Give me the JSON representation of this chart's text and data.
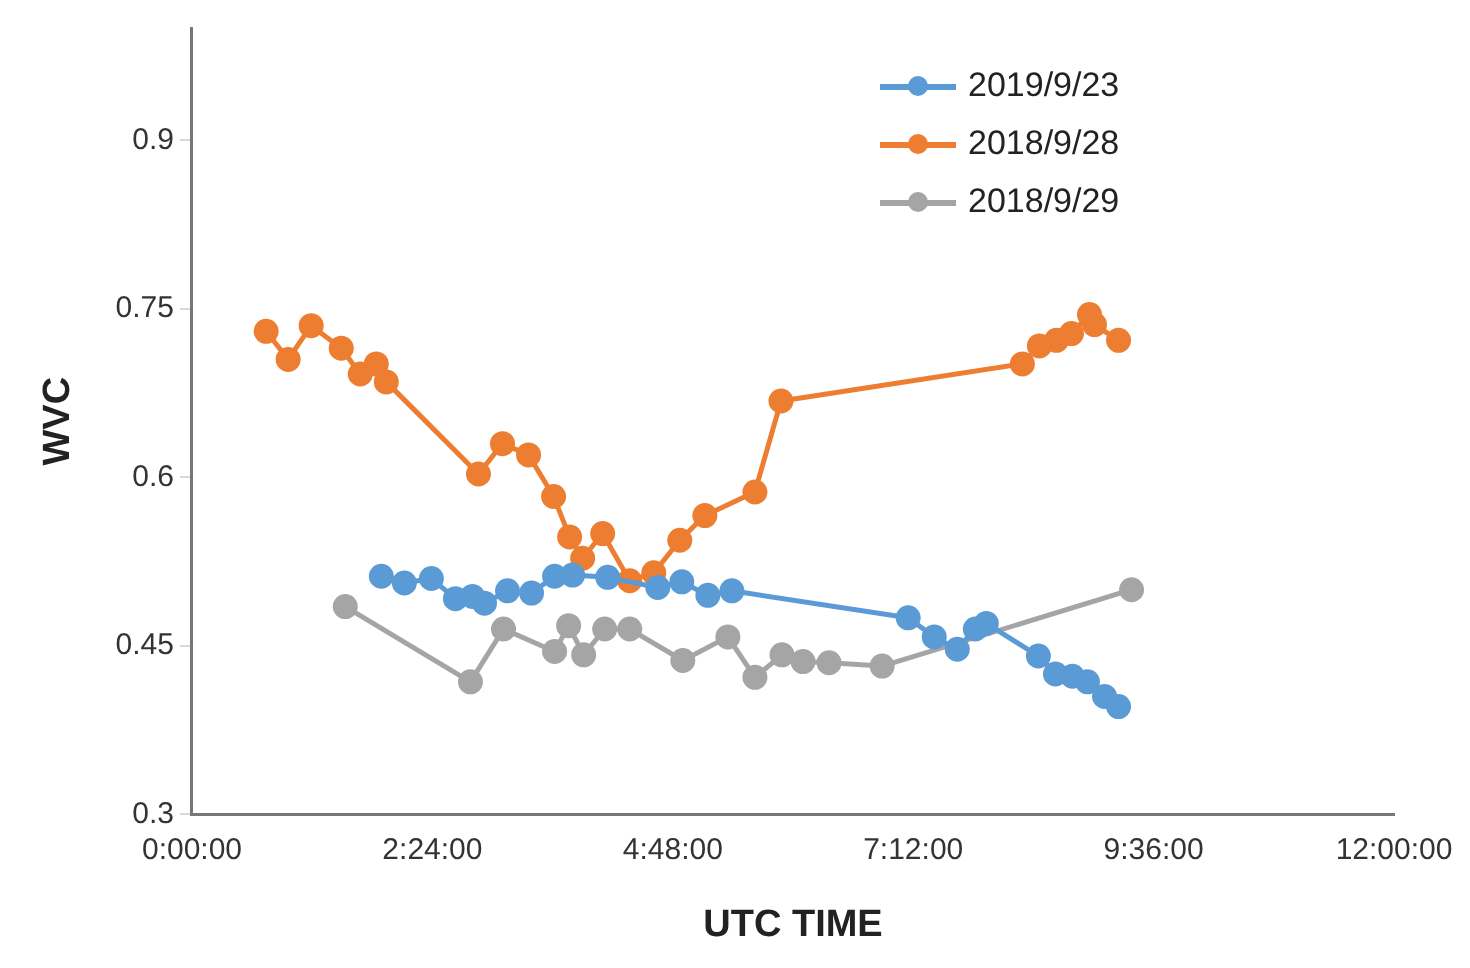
{
  "chart_data": {
    "type": "line",
    "xlabel": "UTC TIME",
    "ylabel": "WVC",
    "xlim": [
      0,
      12
    ],
    "ylim": [
      0.3,
      1.0
    ],
    "xticks": [
      {
        "value": 0,
        "label": "0:00:00"
      },
      {
        "value": 2.4,
        "label": "2:24:00"
      },
      {
        "value": 4.8,
        "label": "4:48:00"
      },
      {
        "value": 7.2,
        "label": "7:12:00"
      },
      {
        "value": 9.6,
        "label": "9:36:00"
      },
      {
        "value": 12,
        "label": "12:00:00"
      }
    ],
    "yticks": [
      0.3,
      0.45,
      0.6,
      0.75,
      0.9
    ],
    "grid": false,
    "legend": "top right",
    "marker": "circle",
    "line_style": "solid",
    "series": [
      {
        "name": "2019/9/23",
        "color": "#5b9bd5",
        "x": [
          1.89,
          2.12,
          2.39,
          2.63,
          2.8,
          2.92,
          3.15,
          3.39,
          3.62,
          3.8,
          4.15,
          4.65,
          4.89,
          5.15,
          5.39,
          7.15,
          7.41,
          7.64,
          7.82,
          7.93,
          8.45,
          8.62,
          8.79,
          8.94,
          9.11,
          9.25
        ],
        "values": [
          0.512,
          0.506,
          0.51,
          0.492,
          0.494,
          0.488,
          0.499,
          0.497,
          0.512,
          0.513,
          0.511,
          0.502,
          0.507,
          0.495,
          0.499,
          0.475,
          0.458,
          0.447,
          0.465,
          0.47,
          0.441,
          0.425,
          0.423,
          0.418,
          0.405,
          0.396
        ]
      },
      {
        "name": "2018/9/28",
        "color": "#ed7d31",
        "x": [
          0.74,
          0.96,
          1.19,
          1.49,
          1.68,
          1.84,
          1.94,
          2.86,
          3.1,
          3.36,
          3.61,
          3.77,
          3.9,
          4.1,
          4.37,
          4.61,
          4.87,
          5.12,
          5.62,
          5.88,
          8.29,
          8.46,
          8.63,
          8.78,
          8.96,
          9.01,
          9.25
        ],
        "values": [
          0.73,
          0.705,
          0.735,
          0.715,
          0.692,
          0.701,
          0.685,
          0.603,
          0.63,
          0.62,
          0.583,
          0.547,
          0.528,
          0.55,
          0.508,
          0.515,
          0.544,
          0.566,
          0.587,
          0.668,
          0.701,
          0.717,
          0.722,
          0.728,
          0.745,
          0.736,
          0.722
        ]
      },
      {
        "name": "2018/9/29",
        "color": "#a5a5a5",
        "x": [
          1.53,
          2.78,
          3.11,
          3.62,
          3.76,
          3.91,
          4.12,
          4.37,
          4.9,
          5.35,
          5.62,
          5.89,
          6.1,
          6.36,
          6.89,
          9.38
        ],
        "values": [
          0.485,
          0.418,
          0.465,
          0.445,
          0.468,
          0.442,
          0.465,
          0.465,
          0.437,
          0.458,
          0.422,
          0.442,
          0.436,
          0.435,
          0.432,
          0.5
        ]
      }
    ]
  }
}
